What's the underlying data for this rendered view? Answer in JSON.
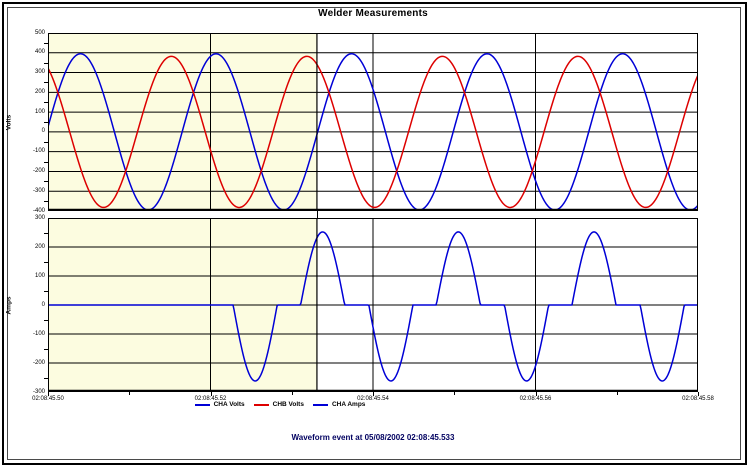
{
  "window": {
    "title": "Welder Measurements",
    "caption": "Waveform event at 05/08/2002 02:08:45.533"
  },
  "colors": {
    "cha_volts": "#0000d6",
    "chb_volts": "#dd0000",
    "cha_amps": "#0000d6",
    "grid": "#000000",
    "highlight": "#fcfce0",
    "title_text": "#000000",
    "caption_text": "#000060"
  },
  "legend": [
    {
      "label": "CHA Volts",
      "color": "#0000d6"
    },
    {
      "label": "CHB Volts",
      "color": "#dd0000"
    },
    {
      "label": "CHA Amps",
      "color": "#0000d6"
    }
  ],
  "highlight_region": {
    "from_t": 45.5,
    "to_t": 45.5331
  },
  "event_cursor_t": 45.5331,
  "chart_data": [
    {
      "type": "line",
      "panel": "voltage",
      "ylabel": "Volts",
      "ylim": [
        -400,
        500
      ],
      "grid_step": 100,
      "grid": true,
      "x_axis": {
        "start_t": 45.5,
        "end_t": 45.58
      },
      "y_tick_labels": [
        "500",
        "400",
        "300",
        "200",
        "100",
        "0",
        "-100",
        "-200",
        "-300",
        "-400"
      ],
      "series": [
        {
          "name": "CHA Volts",
          "waveform": "sine",
          "amplitude": 395,
          "period_s": 0.01668,
          "peak_t": 45.504,
          "color_key": "cha_volts"
        },
        {
          "name": "CHB Volts",
          "waveform": "sine",
          "amplitude": 382,
          "period_s": 0.01668,
          "peak_t": 45.4985,
          "color_key": "chb_volts"
        }
      ]
    },
    {
      "type": "line",
      "panel": "current",
      "ylabel": "Amps",
      "ylim": [
        -300,
        300
      ],
      "grid_step": 100,
      "grid": true,
      "x_axis": {
        "start_t": 45.5,
        "end_t": 45.58
      },
      "x_tick_labels": [
        "02:08:45.50",
        "02:08:45.52",
        "02:08:45.54",
        "02:08:45.56",
        "02:08:45.58"
      ],
      "y_tick_labels": [
        "300",
        "200",
        "100",
        "0",
        "-100",
        "-200",
        "-300"
      ],
      "series": [
        {
          "name": "CHA Amps",
          "waveform": "scr_pulses",
          "baseline": 0,
          "pulse_width_s": 0.00542,
          "color_key": "cha_amps",
          "pulses": [
            {
              "t": 45.5255,
              "peak": -262
            },
            {
              "t": 45.5338,
              "peak": 252
            },
            {
              "t": 45.5422,
              "peak": -262
            },
            {
              "t": 45.5505,
              "peak": 252
            },
            {
              "t": 45.5589,
              "peak": -262
            },
            {
              "t": 45.5672,
              "peak": 252
            },
            {
              "t": 45.5756,
              "peak": -262
            }
          ]
        }
      ]
    }
  ]
}
